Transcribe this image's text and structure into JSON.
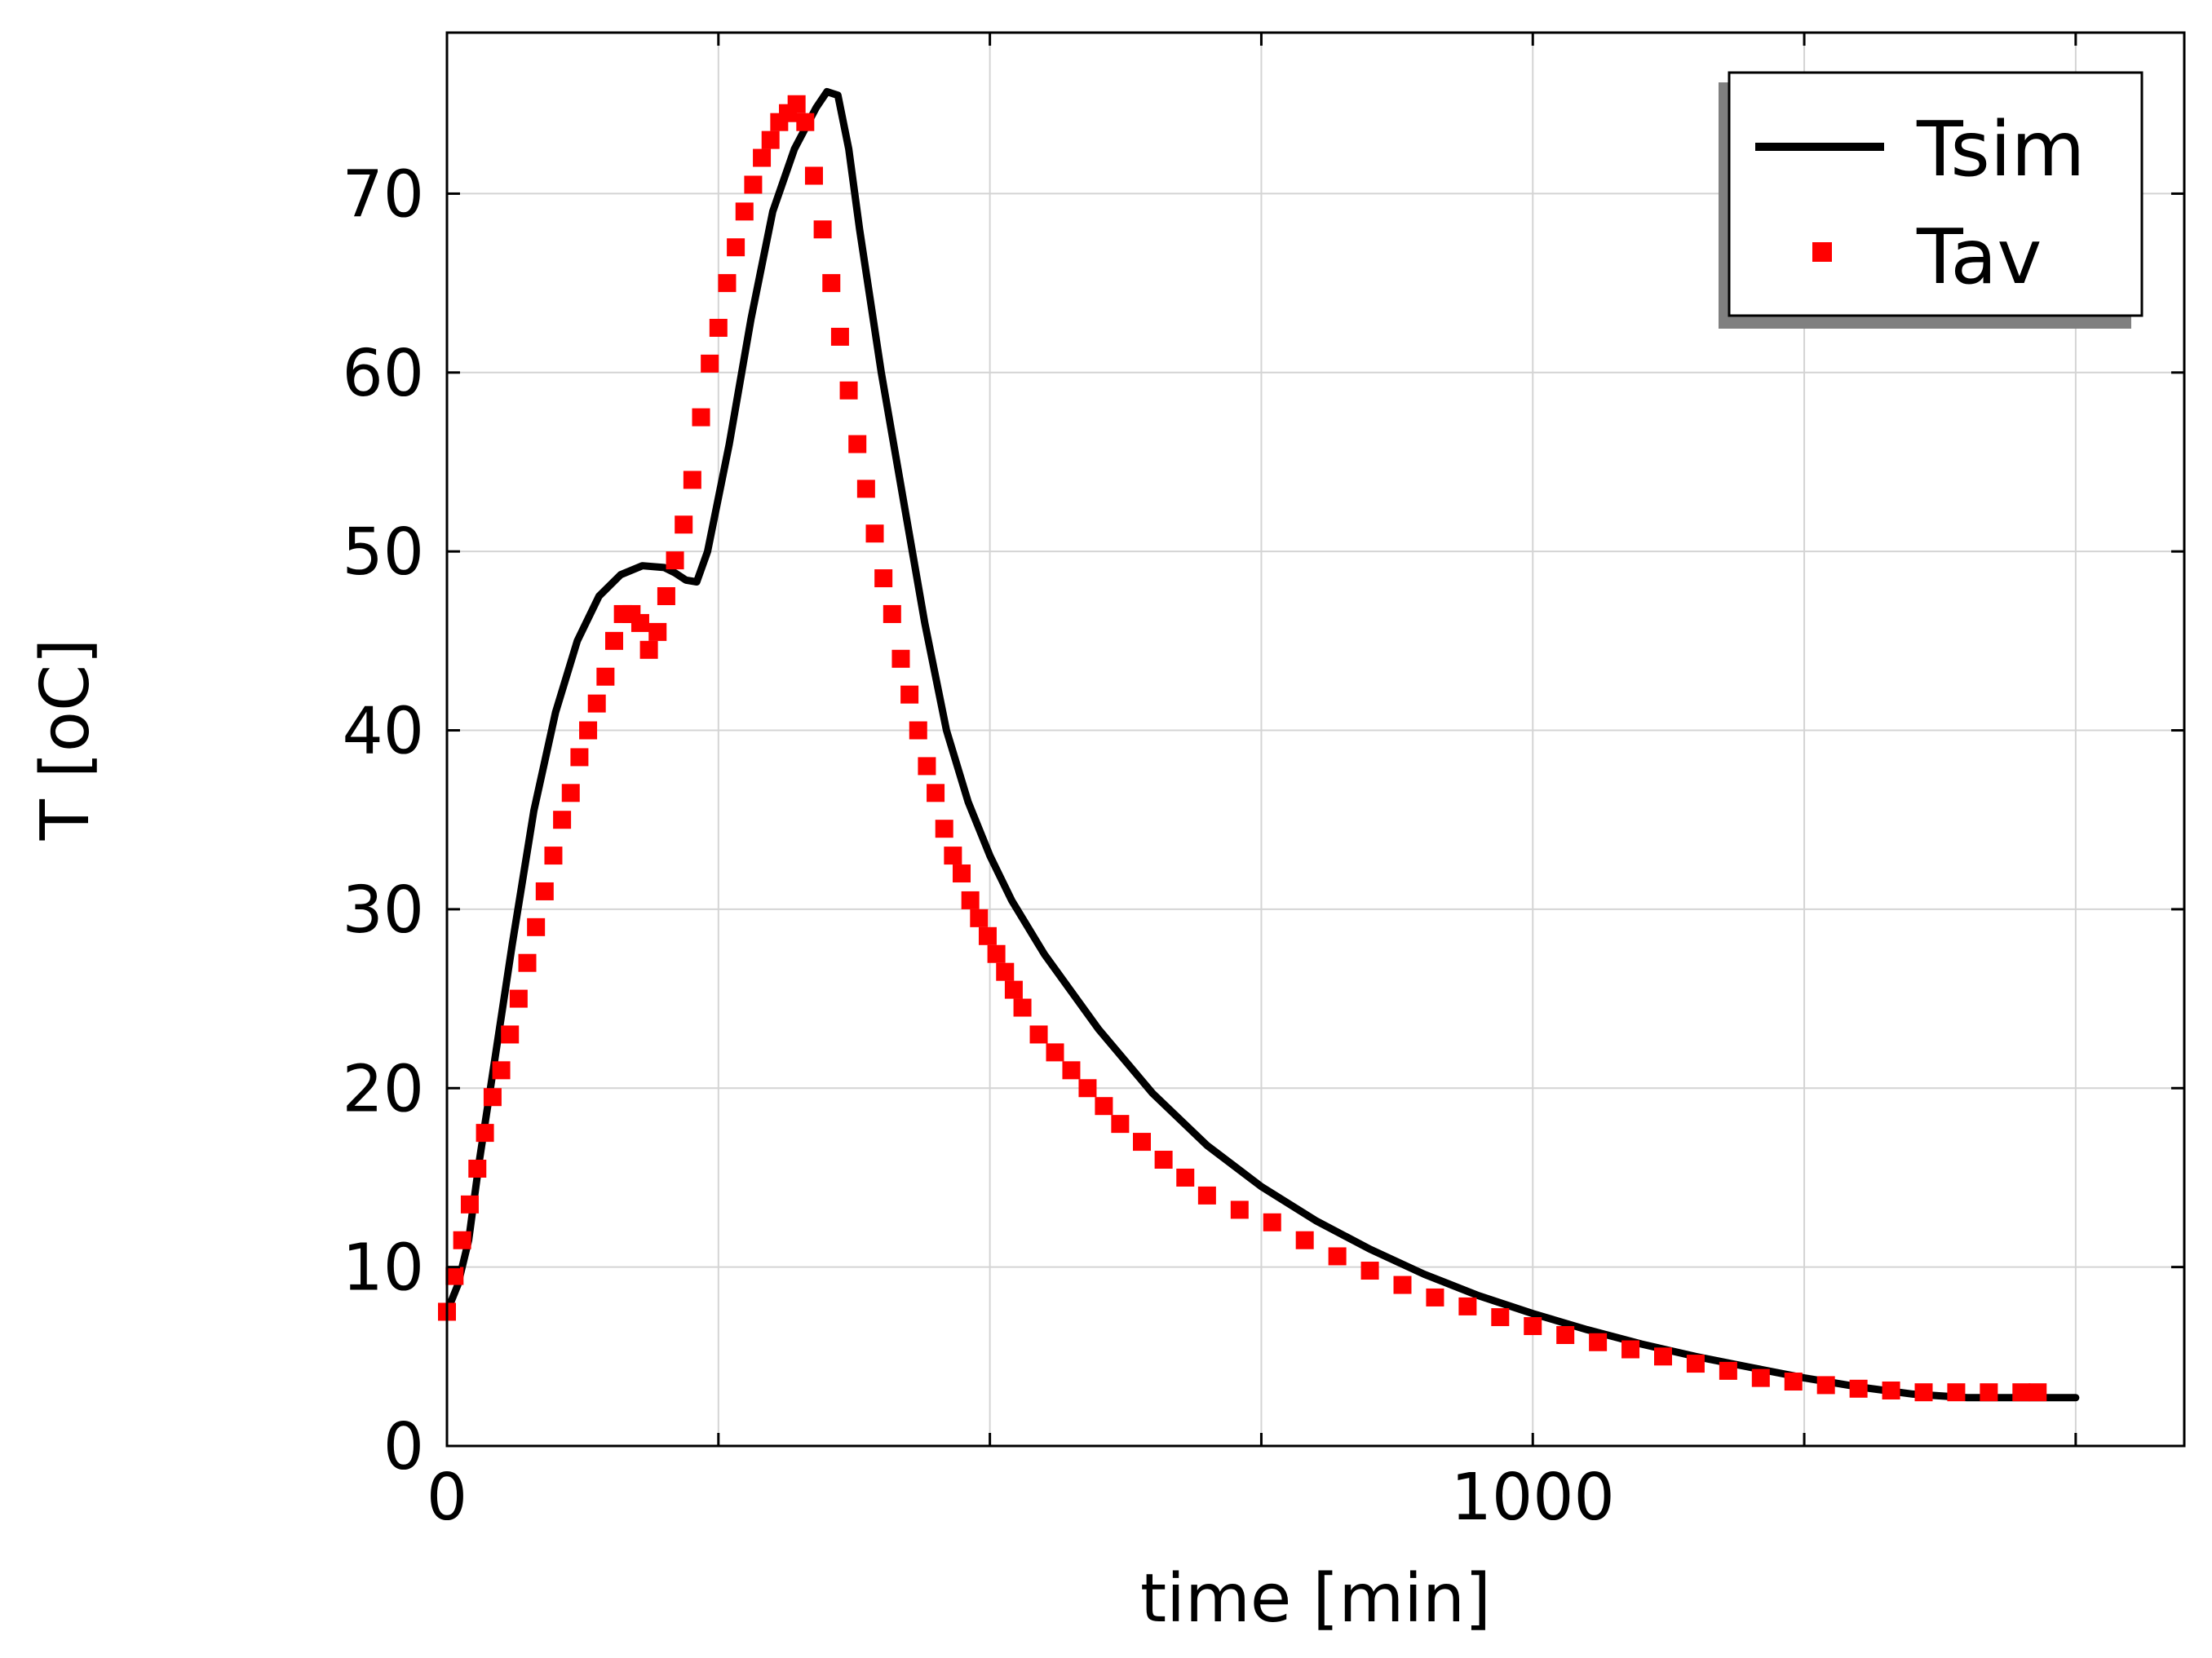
{
  "chart_data": {
    "type": "line",
    "xlabel": "time [min]",
    "ylabel": "T [oC]",
    "xlim": [
      0,
      1600
    ],
    "ylim": [
      0,
      79
    ],
    "x_ticks": [
      {
        "value": 0,
        "label": "0"
      },
      {
        "value": 1000,
        "label": "1000"
      }
    ],
    "x_grid": [
      250,
      500,
      750,
      1000,
      1250,
      1500
    ],
    "y_ticks": [
      {
        "value": 0,
        "label": "0"
      },
      {
        "value": 10,
        "label": "10"
      },
      {
        "value": 20,
        "label": "20"
      },
      {
        "value": 30,
        "label": "30"
      },
      {
        "value": 40,
        "label": "40"
      },
      {
        "value": 50,
        "label": "50"
      },
      {
        "value": 60,
        "label": "60"
      },
      {
        "value": 70,
        "label": "70"
      }
    ],
    "grid": true,
    "legend": {
      "placement": "top-right",
      "items": [
        {
          "label": "Tsim",
          "style": "line",
          "color": "#000000"
        },
        {
          "label": "Tav",
          "style": "square-marker",
          "color": "#ff0000"
        }
      ]
    },
    "series": [
      {
        "name": "Tsim",
        "style": "line",
        "color": "#000000",
        "x": [
          0,
          10,
          20,
          30,
          40,
          60,
          80,
          100,
          120,
          140,
          160,
          180,
          200,
          210,
          220,
          230,
          240,
          260,
          280,
          300,
          320,
          340,
          350,
          360,
          370,
          380,
          400,
          420,
          440,
          460,
          480,
          500,
          520,
          550,
          600,
          650,
          700,
          750,
          800,
          850,
          900,
          950,
          1000,
          1050,
          1100,
          1150,
          1200,
          1250,
          1300,
          1350,
          1400,
          1450,
          1500
        ],
        "y": [
          7.5,
          9,
          11.5,
          16,
          20,
          28,
          35.5,
          41,
          45,
          47.5,
          48.7,
          49.2,
          49.1,
          48.8,
          48.4,
          48.3,
          50,
          56,
          63,
          69,
          72.5,
          74.8,
          75.7,
          75.5,
          72.5,
          68,
          60,
          53,
          46,
          40,
          36,
          33,
          30.5,
          27.5,
          23.3,
          19.7,
          16.8,
          14.5,
          12.6,
          11,
          9.6,
          8.4,
          7.4,
          6.5,
          5.7,
          5,
          4.4,
          3.8,
          3.3,
          2.9,
          2.7,
          2.7,
          2.7
        ]
      },
      {
        "name": "Tav",
        "style": "marker",
        "color": "#ff0000",
        "x": [
          0,
          7,
          14,
          21,
          28,
          35,
          42,
          50,
          58,
          66,
          74,
          82,
          90,
          98,
          106,
          114,
          122,
          130,
          138,
          146,
          154,
          162,
          170,
          178,
          186,
          194,
          202,
          210,
          218,
          226,
          234,
          242,
          250,
          258,
          266,
          274,
          282,
          290,
          298,
          306,
          314,
          322,
          330,
          338,
          346,
          354,
          362,
          370,
          378,
          386,
          394,
          402,
          410,
          418,
          426,
          434,
          442,
          450,
          458,
          466,
          474,
          482,
          490,
          498,
          506,
          514,
          522,
          530,
          545,
          560,
          575,
          590,
          605,
          620,
          640,
          660,
          680,
          700,
          730,
          760,
          790,
          820,
          850,
          880,
          910,
          940,
          970,
          1000,
          1030,
          1060,
          1090,
          1120,
          1150,
          1180,
          1210,
          1240,
          1270,
          1300,
          1330,
          1360,
          1390,
          1420,
          1450,
          1465
        ],
        "y": [
          7.5,
          9.5,
          11.5,
          13.5,
          15.5,
          17.5,
          19.5,
          21,
          23,
          25,
          27,
          29,
          31,
          33,
          35,
          36.5,
          38.5,
          40,
          41.5,
          43,
          45,
          46.5,
          46.5,
          46,
          44.5,
          45.5,
          47.5,
          49.5,
          51.5,
          54,
          57.5,
          60.5,
          62.5,
          65,
          67,
          69,
          70.5,
          72,
          73,
          74,
          74.5,
          75,
          74,
          71,
          68,
          65,
          62,
          59,
          56,
          53.5,
          51,
          48.5,
          46.5,
          44,
          42,
          40,
          38,
          36.5,
          34.5,
          33,
          32,
          30.5,
          29.5,
          28.5,
          27.5,
          26.5,
          25.5,
          24.5,
          23,
          22,
          21,
          20,
          19,
          18,
          17,
          16,
          15,
          14,
          13.2,
          12.5,
          11.5,
          10.6,
          9.8,
          9,
          8.3,
          7.8,
          7.2,
          6.7,
          6.2,
          5.8,
          5.4,
          5,
          4.6,
          4.2,
          3.8,
          3.6,
          3.4,
          3.2,
          3.1,
          3,
          3,
          3,
          3,
          3
        ]
      }
    ]
  }
}
